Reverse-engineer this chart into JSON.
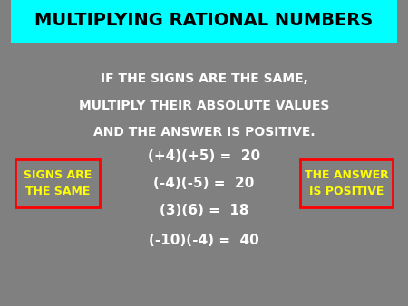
{
  "title": "MULTIPLYING RATIONAL NUMBERS",
  "title_bg": "#00FFFF",
  "title_color": "#000000",
  "bg_color": "#808080",
  "rule_lines": [
    "IF THE SIGNS ARE THE SAME,",
    "MULTIPLY THEIR ABSOLUTE VALUES",
    "AND THE ANSWER IS POSITIVE."
  ],
  "rule_color": "#FFFFFF",
  "equations": [
    "(+4)(+5) =  20",
    "(-4)(-5) =  20",
    "(3)(6) =  18",
    "(-10)(-4) =  40"
  ],
  "eq_color": "#FFFFFF",
  "box_left_text": [
    "SIGNS ARE",
    "THE SAME"
  ],
  "box_right_text": [
    "THE ANSWER",
    "IS POSITIVE"
  ],
  "box_text_color": "#FFFF00",
  "box_border_color": "#FF0000",
  "box_bg_color": "#808080"
}
